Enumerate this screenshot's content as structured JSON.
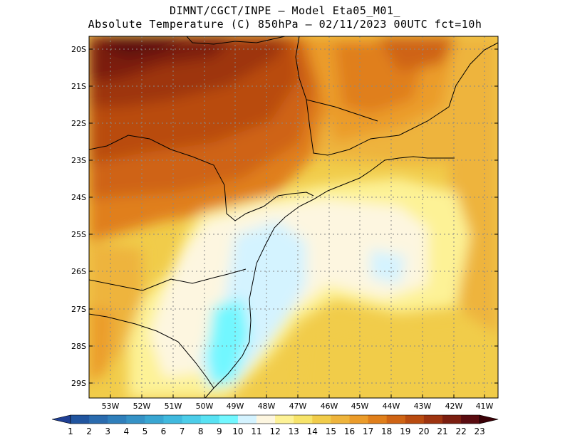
{
  "header": {
    "line1": "DIMNT/CGCT/INPE –  Model Eta05_M01_",
    "line2": "Absolute Temperature (C) 850hPa –  02/11/2023 00UTC fct=10h"
  },
  "map": {
    "lat_labels": [
      "20S",
      "21S",
      "22S",
      "23S",
      "24S",
      "25S",
      "26S",
      "27S",
      "28S",
      "29S"
    ],
    "lon_labels": [
      "53W",
      "52W",
      "51W",
      "50W",
      "49W",
      "48W",
      "47W",
      "46W",
      "45W",
      "44W",
      "43W",
      "42W",
      "41W"
    ]
  },
  "colorbar": {
    "labels": [
      "1",
      "2",
      "3",
      "4",
      "5",
      "6",
      "7",
      "8",
      "9",
      "10",
      "11",
      "12",
      "13",
      "14",
      "15",
      "16",
      "17",
      "18",
      "19",
      "20",
      "21",
      "22",
      "23"
    ],
    "colors": [
      "#1f3f94",
      "#21559f",
      "#2a6bae",
      "#2f7fbb",
      "#3592c6",
      "#39a6d2",
      "#40b9de",
      "#4ccde9",
      "#58e2f3",
      "#72f7ff",
      "#d4f3ff",
      "#fdf6e0",
      "#fdf296",
      "#f7e46a",
      "#f1cc4a",
      "#eeb43c",
      "#eb9c2a",
      "#e07f1b",
      "#cf6414",
      "#b94b10",
      "#9e3410",
      "#7b1e10",
      "#5a0b10",
      "#3a0006"
    ]
  }
}
